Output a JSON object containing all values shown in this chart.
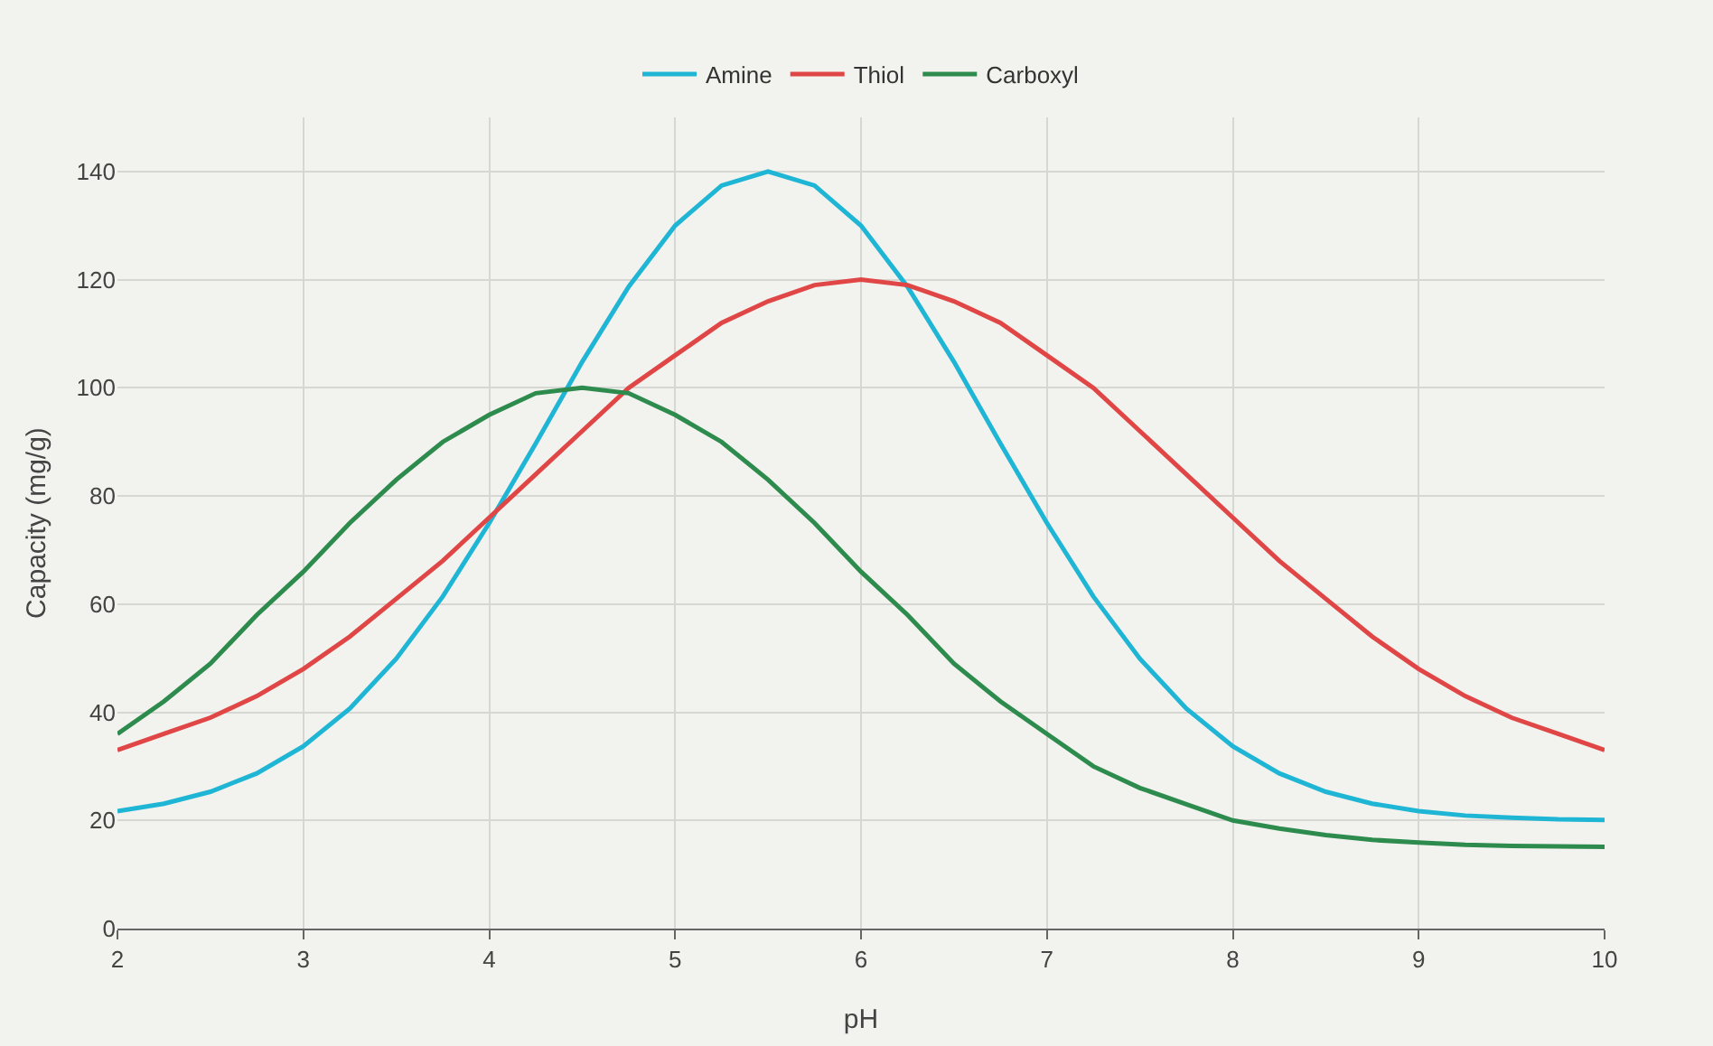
{
  "chart_data": {
    "type": "line",
    "xlabel": "pH",
    "ylabel": "Capacity (mg/g)",
    "x": [
      2,
      2.25,
      2.5,
      2.75,
      3,
      3.25,
      3.5,
      3.75,
      4,
      4.25,
      4.5,
      4.75,
      5,
      5.25,
      5.5,
      5.75,
      6,
      6.25,
      6.5,
      6.75,
      7,
      7.25,
      7.5,
      7.75,
      8,
      8.25,
      8.5,
      8.75,
      9,
      9.25,
      9.5,
      9.75,
      10
    ],
    "series": [
      {
        "name": "Amine",
        "color": "#1fb5d4",
        "values": [
          21.7,
          23.1,
          25.3,
          28.7,
          33.7,
          40.7,
          49.9,
          61.4,
          75,
          89.7,
          104.8,
          118.7,
          130,
          137.4,
          140,
          137.4,
          130,
          118.7,
          104.8,
          89.7,
          75,
          61.4,
          49.9,
          40.7,
          33.7,
          28.7,
          25.3,
          23.1,
          21.7,
          20.9,
          20.5,
          20.2,
          20.1
        ]
      },
      {
        "name": "Thiol",
        "color": "#e04646",
        "values": [
          33,
          36,
          39,
          43,
          48,
          54,
          61,
          68,
          76,
          84,
          92,
          100,
          106,
          112,
          116,
          119,
          120,
          119,
          116,
          112,
          106,
          100,
          92,
          84,
          76,
          68,
          61,
          54,
          48,
          43,
          39,
          36,
          33
        ]
      },
      {
        "name": "Carboxyl",
        "color": "#2e8b4e",
        "values": [
          36,
          42,
          49,
          58,
          66,
          75,
          83,
          90,
          95,
          99,
          100,
          99,
          95,
          90,
          83,
          75,
          66,
          58,
          49,
          42,
          36,
          30,
          26,
          23,
          20,
          18.5,
          17.3,
          16.4,
          15.9,
          15.5,
          15.3,
          15.2,
          15.1
        ]
      }
    ],
    "xlim": [
      2,
      10
    ],
    "xticks": [
      2,
      3,
      4,
      5,
      6,
      7,
      8,
      9,
      10
    ],
    "ylim": [
      0,
      150
    ],
    "yticks": [
      0,
      20,
      40,
      60,
      80,
      100,
      120,
      140
    ],
    "grid": true,
    "legend": "top",
    "marker": "none",
    "line_style": "solid"
  }
}
